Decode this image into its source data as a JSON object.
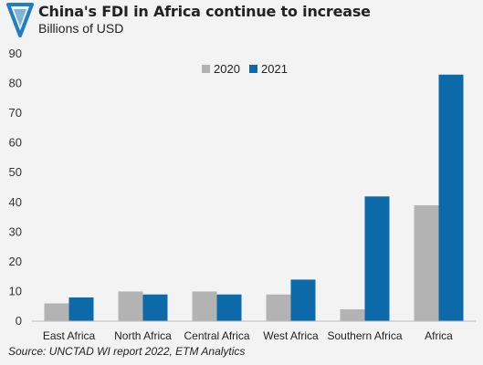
{
  "header": {
    "title": "China's FDI in Africa continue to increase",
    "subtitle": "Billions of USD",
    "logo_icon": "triangle-logo-icon"
  },
  "source": "Source: UNCTAD WI report 2022, ETM Analytics",
  "colors": {
    "series_2020": "#b3b3b3",
    "series_2021": "#0d6aa8",
    "background": "#f3f3f3",
    "logo": "#1f7fc0"
  },
  "chart_data": {
    "type": "bar",
    "title": "China's FDI in Africa continue to increase",
    "subtitle": "Billions of USD",
    "categories": [
      "East Africa",
      "North Africa",
      "Central Africa",
      "West Africa",
      "Southern Africa",
      "Africa"
    ],
    "series": [
      {
        "name": "2020",
        "values": [
          6,
          10,
          10,
          9,
          4,
          39
        ]
      },
      {
        "name": "2021",
        "values": [
          8,
          9,
          9,
          14,
          42,
          83
        ]
      }
    ],
    "ylim": [
      0,
      90
    ],
    "yticks": [
      0,
      10,
      20,
      30,
      40,
      50,
      60,
      70,
      80,
      90
    ],
    "grid": false,
    "legend_position": "top-center"
  }
}
